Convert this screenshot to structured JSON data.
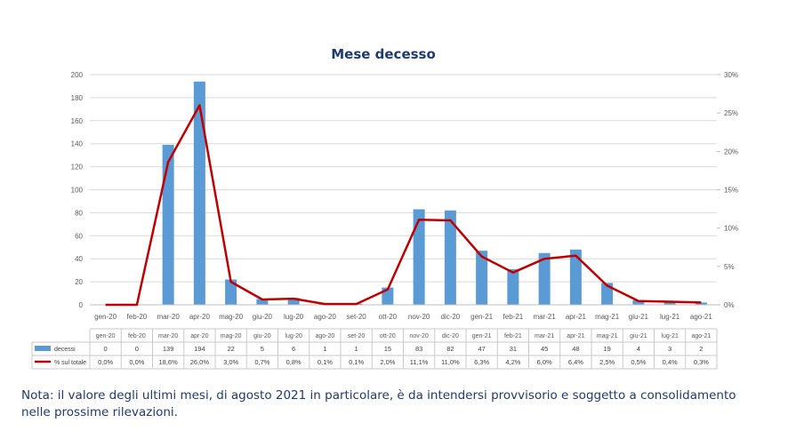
{
  "chart_data": {
    "type": "bar",
    "title": "Mese decesso",
    "categories": [
      "gen-20",
      "feb-20",
      "mar-20",
      "apr-20",
      "mag-20",
      "giu-20",
      "lug-20",
      "ago-20",
      "set-20",
      "ott-20",
      "nov-20",
      "dic-20",
      "gen-21",
      "feb-21",
      "mar-21",
      "apr-21",
      "mag-21",
      "giu-21",
      "lug-21",
      "ago-21"
    ],
    "series": [
      {
        "name": "decessi",
        "type": "bar",
        "axis": "left",
        "color": "#5b9bd5",
        "values": [
          0,
          0,
          139,
          194,
          22,
          5,
          6,
          1,
          1,
          15,
          83,
          82,
          47,
          31,
          45,
          48,
          19,
          4,
          3,
          2
        ],
        "labels": [
          "0",
          "0",
          "139",
          "194",
          "22",
          "5",
          "6",
          "1",
          "1",
          "15",
          "83",
          "82",
          "47",
          "31",
          "45",
          "48",
          "19",
          "4",
          "3",
          "2"
        ]
      },
      {
        "name": "% sul totale",
        "type": "line",
        "axis": "right",
        "color": "#c00000",
        "values": [
          0.0,
          0.0,
          18.6,
          26.0,
          3.0,
          0.7,
          0.8,
          0.1,
          0.1,
          2.0,
          11.1,
          11.0,
          6.3,
          4.2,
          6.0,
          6.4,
          2.5,
          0.5,
          0.4,
          0.3
        ],
        "labels": [
          "0,0%",
          "0,0%",
          "18,6%",
          "26,0%",
          "3,0%",
          "0,7%",
          "0,8%",
          "0,1%",
          "0,1%",
          "2,0%",
          "11,1%",
          "11,0%",
          "6,3%",
          "4,2%",
          "6,0%",
          "6,4%",
          "2,5%",
          "0,5%",
          "0,4%",
          "0,3%"
        ]
      }
    ],
    "y_left": {
      "ylim": [
        0,
        200
      ],
      "ticks": [
        "0",
        "20",
        "40",
        "60",
        "80",
        "100",
        "120",
        "140",
        "160",
        "180",
        "200"
      ]
    },
    "y_right": {
      "ylim": [
        0,
        30
      ],
      "ticks": [
        "0%",
        "5%",
        "10%",
        "15%",
        "20%",
        "25%",
        "30%"
      ]
    },
    "grid": true,
    "data_table": true
  },
  "note": "Nota: il valore degli ultimi mesi, di agosto 2021 in particolare, è da intendersi provvisorio e soggetto a consolidamento nelle prossime rilevazioni."
}
